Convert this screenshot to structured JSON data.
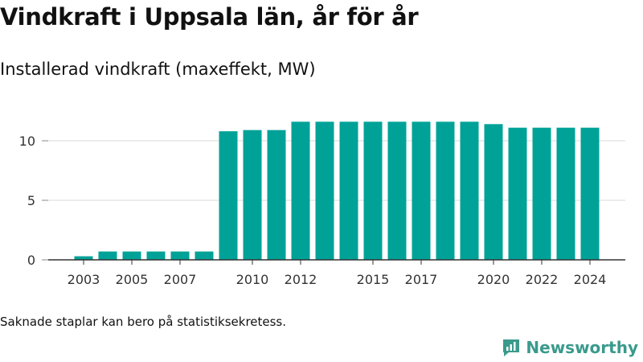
{
  "header": {
    "title": "Vindkraft i Uppsala län, år för år",
    "subtitle": "Installerad vindkraft (maxeffekt, MW)"
  },
  "footer": {
    "note": "Saknade staplar kan bero på statistiksekretess.",
    "brand": "Newsworthy",
    "brand_icon": "newsworthy-logo-icon"
  },
  "chart_data": {
    "type": "bar",
    "categories": [
      "2003",
      "2004",
      "2005",
      "2006",
      "2007",
      "2008",
      "2009",
      "2010",
      "2011",
      "2012",
      "2013",
      "2014",
      "2015",
      "2016",
      "2017",
      "2018",
      "2019",
      "2020",
      "2021",
      "2022",
      "2023",
      "2024"
    ],
    "values": [
      0.3,
      0.7,
      0.7,
      0.7,
      0.7,
      0.7,
      10.8,
      10.9,
      10.9,
      11.6,
      11.6,
      11.6,
      11.6,
      11.6,
      11.6,
      11.6,
      11.6,
      11.4,
      11.1,
      11.1,
      11.1,
      11.1
    ],
    "x_tick_labels": [
      "2003",
      "2005",
      "2007",
      "2010",
      "2012",
      "2015",
      "2017",
      "2020",
      "2022",
      "2024"
    ],
    "y_ticks": [
      0,
      5,
      10
    ],
    "ylim": [
      0,
      12.5
    ],
    "grid": true,
    "bar_color": "#00a298",
    "xlabel": "",
    "ylabel": ""
  }
}
